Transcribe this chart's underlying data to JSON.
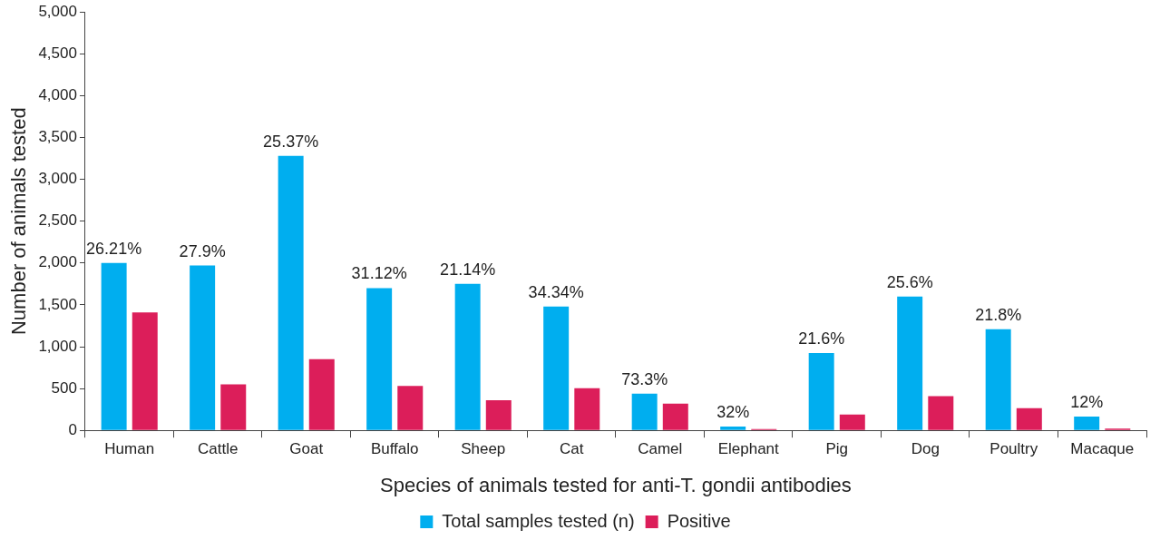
{
  "chart_data": {
    "type": "bar",
    "xlabel": "Species of animals tested for anti-T. gondii antibodies",
    "ylabel": "Number of animals tested",
    "categories": [
      "Human",
      "Cattle",
      "Goat",
      "Buffalo",
      "Sheep",
      "Cat",
      "Camel",
      "Elephant",
      "Pig",
      "Dog",
      "Poultry",
      "Macaque"
    ],
    "series": [
      {
        "name": "Total samples tested (n)",
        "color": "#00aeef",
        "values": [
          2000,
          1970,
          3280,
          1700,
          1750,
          1480,
          440,
          45,
          925,
          1600,
          1210,
          165
        ]
      },
      {
        "name": "Positive",
        "color": "#dc1e5a",
        "values": [
          1410,
          550,
          850,
          530,
          360,
          505,
          320,
          15,
          190,
          410,
          265,
          20
        ]
      }
    ],
    "ylim": [
      0,
      5000
    ],
    "yticks": [
      {
        "value": 0,
        "label": "0"
      },
      {
        "value": 500,
        "label": "500"
      },
      {
        "value": 1000,
        "label": "1,000"
      },
      {
        "value": 1500,
        "label": "1,500"
      },
      {
        "value": 2000,
        "label": "2,000"
      },
      {
        "value": 2500,
        "label": "2,500"
      },
      {
        "value": 3000,
        "label": "3,000"
      },
      {
        "value": 3500,
        "label": "3,500"
      },
      {
        "value": 4000,
        "label": "4,000"
      },
      {
        "value": 4500,
        "label": "4,500"
      },
      {
        "value": 5000,
        "label": "5,000"
      }
    ],
    "grid": false,
    "legend": "bottom",
    "annotations": [
      {
        "text": "26.21%",
        "x": "Human",
        "y": 2000
      },
      {
        "text": "27.9%",
        "x": "Cattle",
        "y": 1970
      },
      {
        "text": "25.37%",
        "x": "Goat",
        "y": 3280
      },
      {
        "text": "31.12%",
        "x": "Buffalo",
        "y": 1700
      },
      {
        "text": "21.14%",
        "x": "Sheep",
        "y": 1750
      },
      {
        "text": "34.34%",
        "x": "Cat",
        "y": 1480
      },
      {
        "text": "73.3%",
        "x": "Camel",
        "y": 440
      },
      {
        "text": "32%",
        "x": "Elephant",
        "y": 45
      },
      {
        "text": "21.6%",
        "x": "Pig",
        "y": 925
      },
      {
        "text": "25.6%",
        "x": "Dog",
        "y": 1600
      },
      {
        "text": "21.8%",
        "x": "Poultry",
        "y": 1210
      },
      {
        "text": "12%",
        "x": "Macaque",
        "y": 165
      }
    ]
  }
}
